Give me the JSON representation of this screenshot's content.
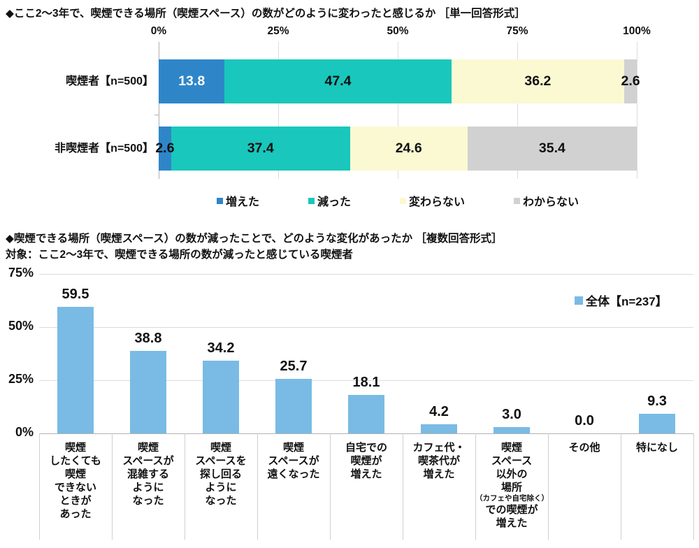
{
  "chart_data": [
    {
      "type": "stacked-bar-horizontal",
      "title": "◆ここ2～3年で、喫煙できる場所（喫煙スペース）の数がどのように変わったと感じるか ［単一回答形式］",
      "x_ticks": [
        "0%",
        "25%",
        "50%",
        "75%",
        "100%"
      ],
      "xlim": [
        0,
        100
      ],
      "grid": true,
      "legend_position": "bottom",
      "categories": [
        "喫煙者【n=500】",
        "非喫煙者【n=500】"
      ],
      "series": [
        {
          "name": "増えた",
          "color": "#2e86c9",
          "values": [
            13.8,
            2.6
          ]
        },
        {
          "name": "減った",
          "color": "#19c7bc",
          "values": [
            47.4,
            37.4
          ]
        },
        {
          "name": "変わらない",
          "color": "#faf9d2",
          "values": [
            36.2,
            24.6
          ]
        },
        {
          "name": "わからない",
          "color": "#d1d1d1",
          "values": [
            2.6,
            35.4
          ]
        }
      ]
    },
    {
      "type": "bar",
      "title": "◆喫煙できる場所（喫煙スペース）の数が減ったことで、どのような変化があったか ［複数回答形式］",
      "subtitle": "対象：ここ2～3年で、喫煙できる場所の数が減ったと感じている喫煙者",
      "legend": "全体【n=237】",
      "bar_color": "#79bbe4",
      "y_ticks": [
        "0%",
        "25%",
        "50%",
        "75%"
      ],
      "ylim": [
        0,
        75
      ],
      "grid": true,
      "legend_position": "right",
      "categories": [
        [
          "喫煙",
          "したくても",
          "喫煙",
          "できない",
          "ときが",
          "あった"
        ],
        [
          "喫煙",
          "スペースが",
          "混雑する",
          "ように",
          "なった"
        ],
        [
          "喫煙",
          "スペースを",
          "探し回る",
          "ように",
          "なった"
        ],
        [
          "喫煙",
          "スペースが",
          "遠くなった"
        ],
        [
          "自宅での",
          "喫煙が",
          "増えた"
        ],
        [
          "カフェ代・",
          "喫茶代が",
          "増えた"
        ],
        [
          "喫煙",
          "スペース",
          "以外の",
          "場所",
          "（カフェや自宅除く）",
          "での喫煙が",
          "増えた"
        ],
        [
          "その他"
        ],
        [
          "特になし"
        ]
      ],
      "values": [
        59.5,
        38.8,
        34.2,
        25.7,
        18.1,
        4.2,
        3.0,
        0.0,
        9.3
      ]
    }
  ]
}
